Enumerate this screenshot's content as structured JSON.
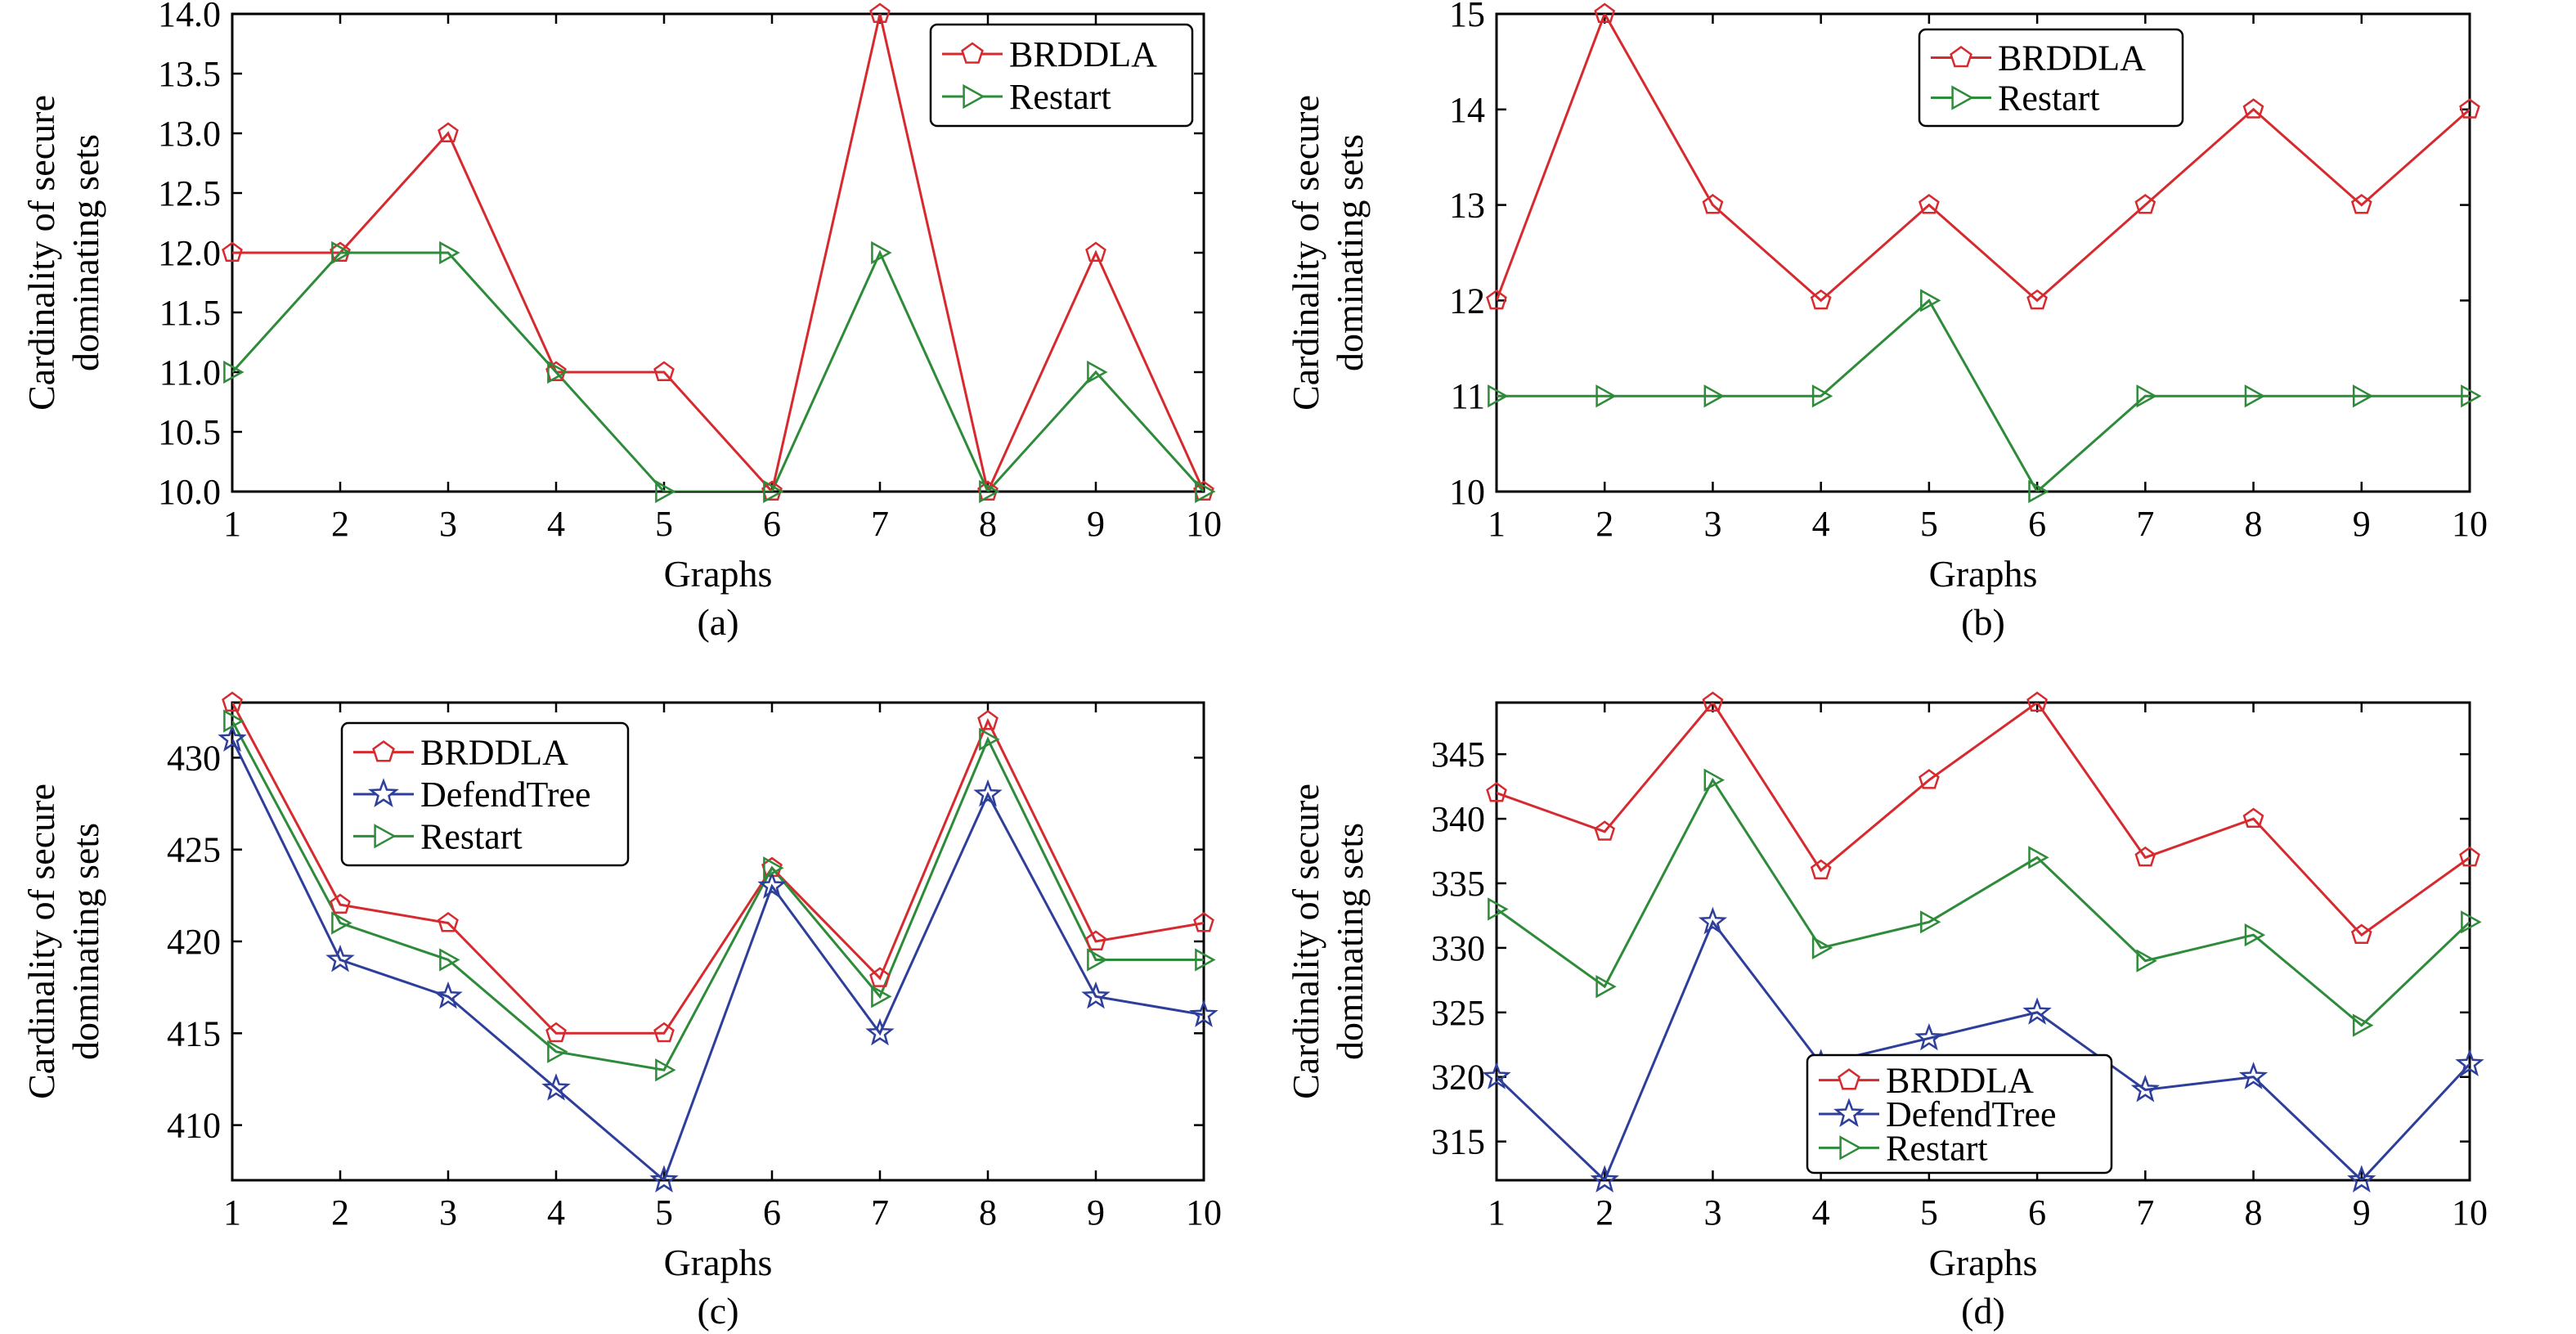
{
  "colors": {
    "BRDDLA": "#d62a2f",
    "DefendTree": "#2d3f9a",
    "Restart": "#2e8b3a",
    "axis": "#000000",
    "background": "#ffffff"
  },
  "markers": {
    "BRDDLA": "pentagon",
    "DefendTree": "star",
    "Restart": "triangle-right"
  },
  "chart_data": [
    {
      "type": "line",
      "panel_label": "(a)",
      "xlabel": "Graphs",
      "ylabel_line1": "Cardinality of secure",
      "ylabel_line2": "dominating sets",
      "x": [
        1,
        2,
        3,
        4,
        5,
        6,
        7,
        8,
        9,
        10
      ],
      "xlim": [
        1,
        10
      ],
      "ylim": [
        10,
        14
      ],
      "yticks": [
        "10.0",
        "10.5",
        "11.0",
        "11.5",
        "12.0",
        "12.5",
        "13.0",
        "13.5",
        "14.0"
      ],
      "xticks": [
        "1",
        "2",
        "3",
        "4",
        "5",
        "6",
        "7",
        "8",
        "9",
        "10"
      ],
      "grid": false,
      "legend_position": "top-right",
      "series": [
        {
          "name": "BRDDLA",
          "values": [
            12,
            12,
            13,
            11,
            11,
            10,
            14,
            10,
            12,
            10
          ]
        },
        {
          "name": "Restart",
          "values": [
            11,
            12,
            12,
            11,
            10,
            10,
            12,
            10,
            11,
            10
          ]
        }
      ]
    },
    {
      "type": "line",
      "panel_label": "(b)",
      "xlabel": "Graphs",
      "ylabel_line1": "Cardinality of secure",
      "ylabel_line2": "dominating sets",
      "x": [
        1,
        2,
        3,
        4,
        5,
        6,
        7,
        8,
        9,
        10
      ],
      "xlim": [
        1,
        10
      ],
      "ylim": [
        10,
        15
      ],
      "yticks": [
        "10",
        "11",
        "12",
        "13",
        "14",
        "15"
      ],
      "xticks": [
        "1",
        "2",
        "3",
        "4",
        "5",
        "6",
        "7",
        "8",
        "9",
        "10"
      ],
      "grid": false,
      "legend_position": "top-center",
      "series": [
        {
          "name": "BRDDLA",
          "values": [
            12,
            15,
            13,
            12,
            13,
            12,
            13,
            14,
            13,
            14
          ]
        },
        {
          "name": "Restart",
          "values": [
            11,
            11,
            11,
            11,
            12,
            10,
            11,
            11,
            11,
            11
          ]
        }
      ]
    },
    {
      "type": "line",
      "panel_label": "(c)",
      "xlabel": "Graphs",
      "ylabel_line1": "Cardinality of secure",
      "ylabel_line2": "dominating sets",
      "x": [
        1,
        2,
        3,
        4,
        5,
        6,
        7,
        8,
        9,
        10
      ],
      "xlim": [
        1,
        10
      ],
      "ylim": [
        407,
        433
      ],
      "yticks": [
        "410",
        "415",
        "420",
        "425",
        "430"
      ],
      "xticks": [
        "1",
        "2",
        "3",
        "4",
        "5",
        "6",
        "7",
        "8",
        "9",
        "10"
      ],
      "grid": false,
      "legend_position": "top-left",
      "series": [
        {
          "name": "BRDDLA",
          "values": [
            433,
            422,
            421,
            415,
            415,
            424,
            418,
            432,
            420,
            421
          ]
        },
        {
          "name": "DefendTree",
          "values": [
            431,
            419,
            417,
            412,
            407,
            423,
            415,
            428,
            417,
            416
          ]
        },
        {
          "name": "Restart",
          "values": [
            432,
            421,
            419,
            414,
            413,
            424,
            417,
            431,
            419,
            419
          ]
        }
      ]
    },
    {
      "type": "line",
      "panel_label": "(d)",
      "xlabel": "Graphs",
      "ylabel_line1": "Cardinality of secure",
      "ylabel_line2": "dominating sets",
      "x": [
        1,
        2,
        3,
        4,
        5,
        6,
        7,
        8,
        9,
        10
      ],
      "xlim": [
        1,
        10
      ],
      "ylim": [
        312,
        349
      ],
      "yticks": [
        "315",
        "320",
        "325",
        "330",
        "335",
        "340",
        "345"
      ],
      "xticks": [
        "1",
        "2",
        "3",
        "4",
        "5",
        "6",
        "7",
        "8",
        "9",
        "10"
      ],
      "grid": false,
      "legend_position": "bottom-left",
      "series": [
        {
          "name": "BRDDLA",
          "values": [
            342,
            339,
            349,
            336,
            343,
            349,
            337,
            340,
            331,
            337
          ]
        },
        {
          "name": "DefendTree",
          "values": [
            320,
            312,
            332,
            321,
            323,
            325,
            319,
            320,
            312,
            321
          ]
        },
        {
          "name": "Restart",
          "values": [
            333,
            327,
            343,
            330,
            332,
            337,
            329,
            331,
            324,
            332
          ]
        }
      ]
    }
  ]
}
